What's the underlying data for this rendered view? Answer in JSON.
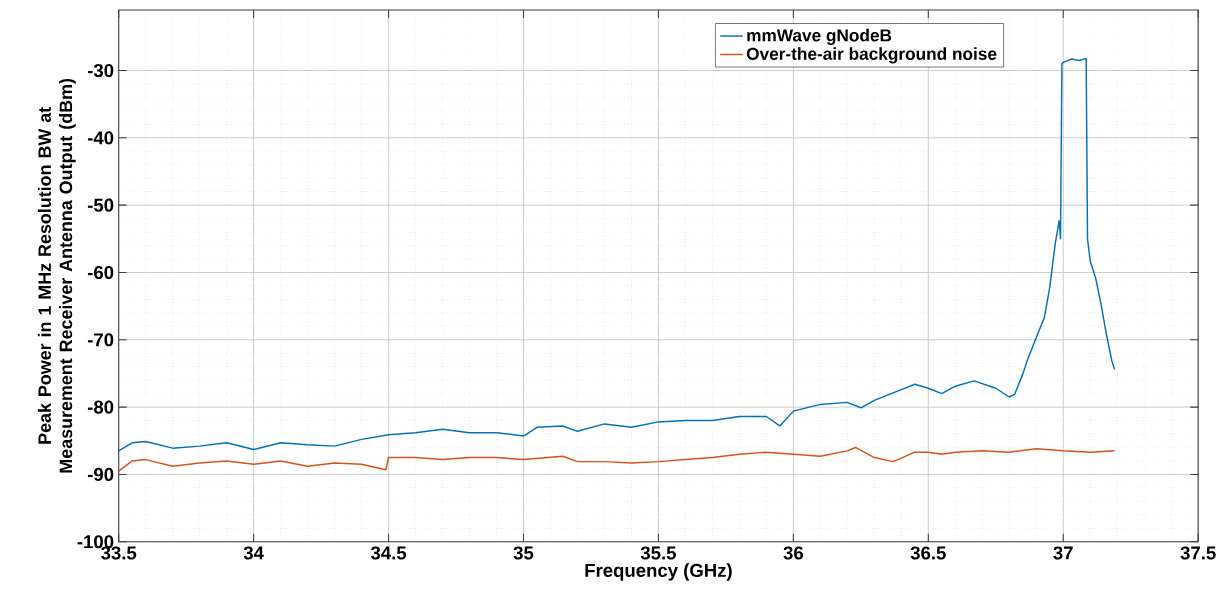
{
  "chart_data": {
    "type": "line",
    "xlabel": "Frequency (GHz)",
    "ylabel": "Peak Power in 1 MHz Resolution BW at Measurement Receiver Antenna Output (dBm)",
    "xlim": [
      33.5,
      37.5
    ],
    "ylim": [
      -100,
      -21
    ],
    "xticks": [
      33.5,
      34,
      34.5,
      35,
      35.5,
      36,
      36.5,
      37,
      37.5
    ],
    "yticks": [
      -100,
      -90,
      -80,
      -70,
      -60,
      -50,
      -40,
      -30
    ],
    "grid": true,
    "legend": "top right",
    "marker": "none",
    "line_style": "solid",
    "series": [
      {
        "name": "mmWave gNodeB",
        "color": "#0072bd",
        "x": [
          33.5,
          33.55,
          33.6,
          33.7,
          33.8,
          33.9,
          34.0,
          34.1,
          34.2,
          34.3,
          34.4,
          34.5,
          34.6,
          34.7,
          34.8,
          34.9,
          35.0,
          35.05,
          35.146,
          35.2,
          35.3,
          35.4,
          35.5,
          35.6,
          35.7,
          35.8,
          35.9,
          35.95,
          36.0,
          36.1,
          36.2,
          36.25,
          36.3,
          36.4,
          36.45,
          36.5,
          36.55,
          36.6,
          36.67,
          36.75,
          36.8,
          36.82,
          36.85,
          36.87,
          36.9,
          36.93,
          36.95,
          36.97,
          36.985,
          36.99,
          36.995,
          37.0,
          37.03,
          37.06,
          37.085,
          37.09,
          37.1,
          37.12,
          37.14,
          37.16,
          37.18,
          37.19
        ],
        "values": [
          -86.5,
          -85.3,
          -85.1,
          -86.1,
          -85.8,
          -85.3,
          -86.3,
          -85.3,
          -85.6,
          -85.8,
          -84.8,
          -84.1,
          -83.8,
          -83.3,
          -83.8,
          -83.8,
          -84.3,
          -83.0,
          -82.8,
          -83.6,
          -82.5,
          -83.0,
          -82.2,
          -82.0,
          -82.0,
          -81.4,
          -81.4,
          -82.8,
          -80.6,
          -79.6,
          -79.3,
          -80.1,
          -79.0,
          -77.4,
          -76.6,
          -77.2,
          -78.0,
          -76.9,
          -76.1,
          -77.2,
          -78.5,
          -78.1,
          -75.1,
          -72.7,
          -69.7,
          -66.7,
          -62.2,
          -55.8,
          -52.3,
          -55.0,
          -29.0,
          -28.8,
          -28.3,
          -28.5,
          -28.2,
          -55.0,
          -58.3,
          -60.8,
          -64.7,
          -69.2,
          -73.1,
          -74.4
        ]
      },
      {
        "name": "Over-the-air background noise",
        "color": "#d95319",
        "x": [
          33.5,
          33.55,
          33.6,
          33.7,
          33.8,
          33.9,
          34.0,
          34.1,
          34.2,
          34.3,
          34.4,
          34.49,
          34.5,
          34.6,
          34.7,
          34.8,
          34.9,
          35.0,
          35.146,
          35.2,
          35.3,
          35.4,
          35.5,
          35.6,
          35.7,
          35.8,
          35.9,
          36.0,
          36.1,
          36.2,
          36.23,
          36.3,
          36.37,
          36.45,
          36.5,
          36.55,
          36.6,
          36.7,
          36.8,
          36.9,
          37.0,
          37.1,
          37.19
        ],
        "values": [
          -89.5,
          -88.0,
          -87.8,
          -88.8,
          -88.3,
          -88.0,
          -88.5,
          -88.0,
          -88.8,
          -88.3,
          -88.5,
          -89.3,
          -87.5,
          -87.5,
          -87.8,
          -87.5,
          -87.5,
          -87.8,
          -87.3,
          -88.1,
          -88.1,
          -88.3,
          -88.1,
          -87.8,
          -87.5,
          -87.0,
          -86.7,
          -87.0,
          -87.3,
          -86.5,
          -86.0,
          -87.5,
          -88.1,
          -86.7,
          -86.7,
          -87.0,
          -86.7,
          -86.5,
          -86.7,
          -86.2,
          -86.5,
          -86.7,
          -86.5
        ]
      }
    ]
  }
}
